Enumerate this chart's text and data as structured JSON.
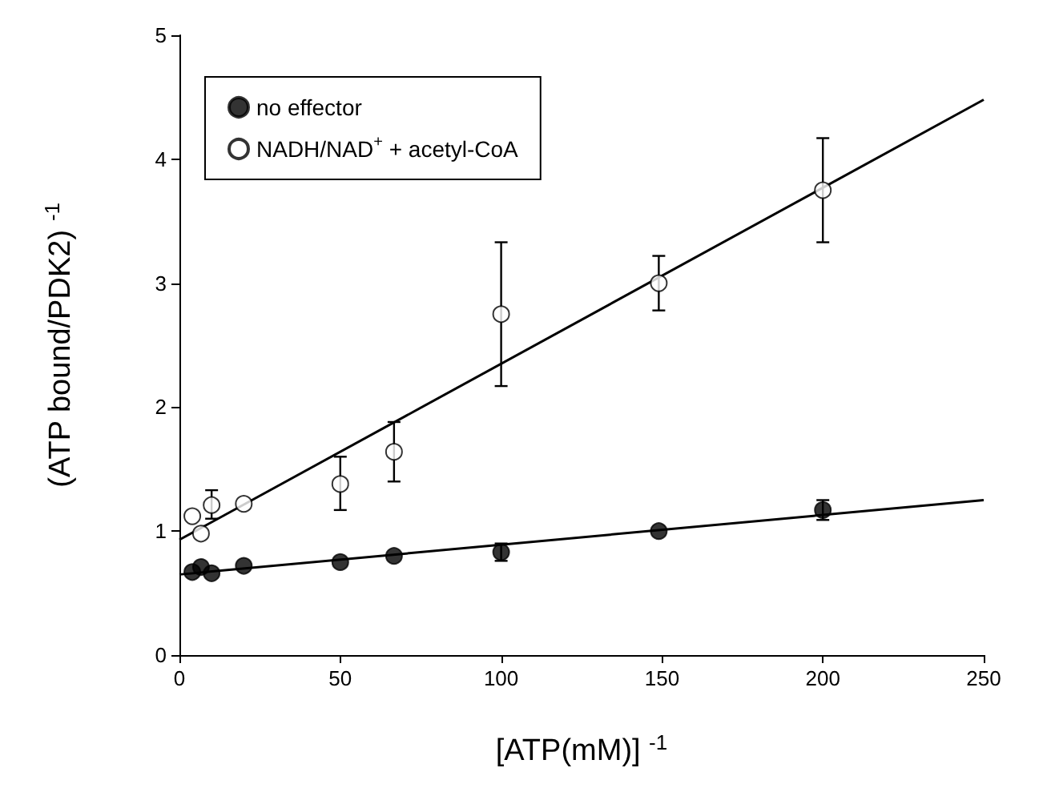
{
  "chart_data": {
    "type": "scatter",
    "xlabel": "[ATP(mM)] $^{-1}$",
    "ylabel": "(ATP bound/PDK2) $^{-1}$",
    "xlim": [
      0,
      250
    ],
    "ylim": [
      0,
      5
    ],
    "xticks": [
      0,
      50,
      100,
      150,
      200,
      250
    ],
    "yticks": [
      0,
      1,
      2,
      3,
      4,
      5
    ],
    "grid": false,
    "legend": "top left",
    "marker": "circle",
    "series": [
      {
        "name": "no effector",
        "color": "#000000",
        "x": [
          4,
          6.7,
          10,
          20,
          50,
          66.7,
          100,
          149,
          200
        ],
        "values": [
          0.67,
          0.71,
          0.66,
          0.72,
          0.75,
          0.8,
          0.83,
          1.0,
          1.17
        ],
        "errors": [
          null,
          null,
          null,
          null,
          null,
          null,
          0.07,
          null,
          0.08
        ]
      },
      {
        "name": "NADH/NAD$^{+}$ + acetyl-CoA",
        "color": "#ffffff",
        "x": [
          4,
          6.7,
          10,
          20,
          50,
          66.7,
          100,
          149,
          200
        ],
        "values": [
          1.12,
          0.98,
          1.21,
          1.22,
          1.38,
          1.64,
          2.75,
          3.0,
          3.75
        ],
        "errors": [
          null,
          null,
          [
            1.1,
            1.33
          ],
          null,
          [
            1.17,
            1.6
          ],
          [
            1.4,
            1.88
          ],
          [
            2.17,
            3.33
          ],
          [
            2.78,
            3.22
          ],
          [
            3.33,
            4.17
          ]
        ]
      },
      {
        "type": "line",
        "color": "#000000",
        "marker": "none",
        "x": [
          0,
          250
        ],
        "values": [
          0.65,
          1.25
        ]
      },
      {
        "type": "line",
        "color": "#000000",
        "marker": "none",
        "x": [
          0,
          250
        ],
        "values": [
          0.93,
          4.48
        ]
      }
    ]
  }
}
